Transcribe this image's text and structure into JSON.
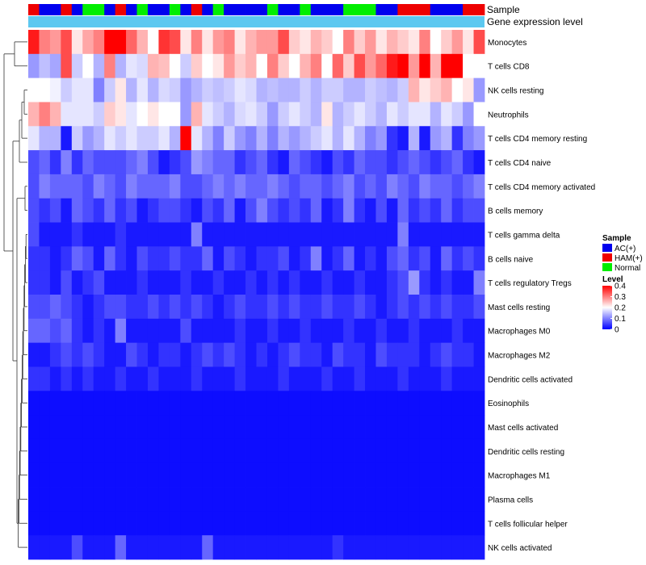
{
  "chart_data": {
    "type": "heatmap",
    "annotation_labels": {
      "sample": "Sample",
      "gene_expression": "Gene expression level"
    },
    "sample_groups": [
      "HAM(+)",
      "AC(+)",
      "AC(+)",
      "HAM(+)",
      "AC(+)",
      "Normal",
      "Normal",
      "AC(+)",
      "HAM(+)",
      "AC(+)",
      "Normal",
      "AC(+)",
      "AC(+)",
      "Normal",
      "AC(+)",
      "HAM(+)",
      "AC(+)",
      "Normal",
      "AC(+)",
      "AC(+)",
      "AC(+)",
      "AC(+)",
      "Normal",
      "AC(+)",
      "AC(+)",
      "Normal",
      "AC(+)",
      "AC(+)",
      "AC(+)",
      "Normal",
      "Normal",
      "Normal",
      "AC(+)",
      "AC(+)",
      "HAM(+)",
      "HAM(+)",
      "HAM(+)",
      "AC(+)",
      "AC(+)",
      "AC(+)",
      "HAM(+)",
      "HAM(+)"
    ],
    "group_colors": {
      "AC(+)": "#0000ee",
      "HAM(+)": "#ee0000",
      "Normal": "#00ee00"
    },
    "gene_expression_color": "#5cc8f0",
    "rows": [
      "Monocytes",
      "T cells CD8",
      "NK cells resting",
      "Neutrophils",
      "T cells CD4 memory resting",
      "T cells CD4 naive",
      "T cells CD4 memory activated",
      "B cells memory",
      "T cells gamma delta",
      "B cells naive",
      "T cells regulatory  Tregs",
      "Mast cells resting",
      "Macrophages M0",
      "Macrophages M2",
      "Dendritic cells activated",
      "Eosinophils",
      "Mast cells activated",
      "Dendritic cells resting",
      "Macrophages M1",
      "Plasma cells",
      "T cells follicular helper",
      "NK cells activated"
    ],
    "values": [
      [
        0.38,
        0.3,
        0.28,
        0.34,
        0.22,
        0.27,
        0.3,
        0.4,
        0.4,
        0.32,
        0.26,
        0.2,
        0.36,
        0.34,
        0.22,
        0.3,
        0.22,
        0.28,
        0.3,
        0.22,
        0.26,
        0.28,
        0.28,
        0.34,
        0.24,
        0.22,
        0.26,
        0.24,
        0.2,
        0.3,
        0.24,
        0.28,
        0.22,
        0.26,
        0.24,
        0.22,
        0.3,
        0.2,
        0.24,
        0.28,
        0.22,
        0.34
      ],
      [
        0.12,
        0.15,
        0.13,
        0.34,
        0.16,
        0.2,
        0.14,
        0.3,
        0.14,
        0.18,
        0.17,
        0.26,
        0.25,
        0.2,
        0.16,
        0.24,
        0.2,
        0.22,
        0.28,
        0.24,
        0.26,
        0.2,
        0.3,
        0.24,
        0.2,
        0.26,
        0.3,
        0.2,
        0.32,
        0.24,
        0.34,
        0.28,
        0.32,
        0.38,
        0.4,
        0.28,
        0.4,
        0.26,
        0.4,
        0.4,
        0.2,
        0.2
      ],
      [
        0.2,
        0.2,
        0.19,
        0.16,
        0.18,
        0.18,
        0.1,
        0.16,
        0.22,
        0.14,
        0.18,
        0.14,
        0.17,
        0.16,
        0.12,
        0.14,
        0.16,
        0.15,
        0.16,
        0.18,
        0.17,
        0.14,
        0.15,
        0.14,
        0.14,
        0.16,
        0.14,
        0.16,
        0.16,
        0.14,
        0.14,
        0.16,
        0.15,
        0.14,
        0.16,
        0.26,
        0.22,
        0.24,
        0.26,
        0.2,
        0.22,
        0.12
      ],
      [
        0.26,
        0.3,
        0.26,
        0.18,
        0.18,
        0.18,
        0.16,
        0.24,
        0.22,
        0.18,
        0.2,
        0.22,
        0.2,
        0.2,
        0.12,
        0.26,
        0.18,
        0.16,
        0.14,
        0.17,
        0.18,
        0.16,
        0.12,
        0.16,
        0.18,
        0.16,
        0.14,
        0.22,
        0.14,
        0.16,
        0.18,
        0.16,
        0.14,
        0.18,
        0.16,
        0.18,
        0.18,
        0.14,
        0.18,
        0.16,
        0.12,
        0.2
      ],
      [
        0.18,
        0.14,
        0.14,
        0.02,
        0.16,
        0.12,
        0.14,
        0.18,
        0.16,
        0.18,
        0.16,
        0.16,
        0.18,
        0.14,
        0.4,
        0.18,
        0.14,
        0.1,
        0.16,
        0.12,
        0.1,
        0.14,
        0.1,
        0.14,
        0.12,
        0.14,
        0.16,
        0.18,
        0.14,
        0.18,
        0.14,
        0.1,
        0.12,
        0.04,
        0.02,
        0.14,
        0.02,
        0.12,
        0.14,
        0.04,
        0.1,
        0.12
      ],
      [
        0.06,
        0.08,
        0.04,
        0.1,
        0.04,
        0.08,
        0.06,
        0.06,
        0.06,
        0.08,
        0.1,
        0.06,
        0.02,
        0.04,
        0.06,
        0.12,
        0.1,
        0.08,
        0.08,
        0.04,
        0.06,
        0.08,
        0.04,
        0.02,
        0.08,
        0.06,
        0.04,
        0.02,
        0.06,
        0.04,
        0.08,
        0.06,
        0.06,
        0.04,
        0.06,
        0.08,
        0.06,
        0.04,
        0.06,
        0.08,
        0.04,
        0.02
      ],
      [
        0.06,
        0.1,
        0.08,
        0.08,
        0.08,
        0.06,
        0.1,
        0.08,
        0.06,
        0.1,
        0.08,
        0.08,
        0.08,
        0.1,
        0.06,
        0.06,
        0.08,
        0.1,
        0.08,
        0.1,
        0.08,
        0.08,
        0.1,
        0.08,
        0.06,
        0.08,
        0.08,
        0.06,
        0.08,
        0.1,
        0.06,
        0.08,
        0.06,
        0.1,
        0.08,
        0.06,
        0.1,
        0.08,
        0.08,
        0.06,
        0.08,
        0.1
      ],
      [
        0.06,
        0.04,
        0.06,
        0.02,
        0.08,
        0.06,
        0.04,
        0.08,
        0.04,
        0.06,
        0.02,
        0.04,
        0.06,
        0.06,
        0.04,
        0.02,
        0.06,
        0.04,
        0.08,
        0.02,
        0.06,
        0.1,
        0.06,
        0.04,
        0.06,
        0.04,
        0.08,
        0.02,
        0.04,
        0.1,
        0.04,
        0.02,
        0.06,
        0.02,
        0.08,
        0.04,
        0.06,
        0.04,
        0.08,
        0.04,
        0.06,
        0.06
      ],
      [
        0.06,
        0.02,
        0.02,
        0.02,
        0.04,
        0.02,
        0.02,
        0.02,
        0.04,
        0.02,
        0.02,
        0.02,
        0.02,
        0.02,
        0.02,
        0.1,
        0.02,
        0.02,
        0.02,
        0.02,
        0.02,
        0.02,
        0.02,
        0.02,
        0.02,
        0.02,
        0.02,
        0.02,
        0.02,
        0.02,
        0.02,
        0.02,
        0.02,
        0.02,
        0.1,
        0.02,
        0.02,
        0.02,
        0.02,
        0.02,
        0.02,
        0.02
      ],
      [
        0.04,
        0.04,
        0.02,
        0.04,
        0.08,
        0.06,
        0.02,
        0.08,
        0.04,
        0.02,
        0.06,
        0.04,
        0.04,
        0.06,
        0.04,
        0.04,
        0.08,
        0.02,
        0.06,
        0.04,
        0.02,
        0.04,
        0.04,
        0.06,
        0.02,
        0.04,
        0.1,
        0.02,
        0.04,
        0.08,
        0.02,
        0.04,
        0.02,
        0.06,
        0.08,
        0.04,
        0.06,
        0.02,
        0.08,
        0.04,
        0.06,
        0.04
      ],
      [
        0.04,
        0.04,
        0.02,
        0.06,
        0.02,
        0.04,
        0.06,
        0.02,
        0.02,
        0.02,
        0.04,
        0.02,
        0.02,
        0.02,
        0.04,
        0.02,
        0.02,
        0.04,
        0.02,
        0.02,
        0.04,
        0.02,
        0.04,
        0.02,
        0.04,
        0.02,
        0.02,
        0.04,
        0.02,
        0.02,
        0.04,
        0.02,
        0.02,
        0.04,
        0.06,
        0.12,
        0.04,
        0.02,
        0.04,
        0.02,
        0.02,
        0.1
      ],
      [
        0.06,
        0.06,
        0.08,
        0.06,
        0.04,
        0.02,
        0.04,
        0.06,
        0.06,
        0.04,
        0.04,
        0.06,
        0.04,
        0.06,
        0.04,
        0.06,
        0.04,
        0.02,
        0.04,
        0.06,
        0.04,
        0.04,
        0.06,
        0.04,
        0.06,
        0.04,
        0.04,
        0.06,
        0.04,
        0.04,
        0.06,
        0.04,
        0.02,
        0.04,
        0.06,
        0.04,
        0.06,
        0.04,
        0.06,
        0.04,
        0.04,
        0.06
      ],
      [
        0.08,
        0.08,
        0.06,
        0.08,
        0.04,
        0.02,
        0.04,
        0.02,
        0.1,
        0.02,
        0.02,
        0.02,
        0.02,
        0.02,
        0.06,
        0.02,
        0.02,
        0.02,
        0.02,
        0.04,
        0.02,
        0.02,
        0.04,
        0.02,
        0.02,
        0.04,
        0.02,
        0.02,
        0.02,
        0.04,
        0.02,
        0.02,
        0.04,
        0.02,
        0.02,
        0.04,
        0.02,
        0.02,
        0.02,
        0.04,
        0.02,
        0.02
      ],
      [
        0.02,
        0.02,
        0.04,
        0.06,
        0.04,
        0.06,
        0.04,
        0.02,
        0.02,
        0.06,
        0.04,
        0.02,
        0.04,
        0.04,
        0.02,
        0.04,
        0.06,
        0.04,
        0.06,
        0.04,
        0.02,
        0.04,
        0.02,
        0.04,
        0.06,
        0.04,
        0.04,
        0.02,
        0.06,
        0.04,
        0.04,
        0.02,
        0.06,
        0.04,
        0.04,
        0.04,
        0.02,
        0.04,
        0.06,
        0.04,
        0.04,
        0.02
      ],
      [
        0.04,
        0.04,
        0.02,
        0.04,
        0.02,
        0.04,
        0.02,
        0.02,
        0.04,
        0.02,
        0.02,
        0.04,
        0.02,
        0.02,
        0.02,
        0.04,
        0.02,
        0.02,
        0.02,
        0.04,
        0.02,
        0.02,
        0.02,
        0.04,
        0.02,
        0.02,
        0.02,
        0.04,
        0.02,
        0.02,
        0.04,
        0.02,
        0.02,
        0.02,
        0.04,
        0.02,
        0.02,
        0.02,
        0.04,
        0.02,
        0.02,
        0.02
      ],
      [
        0.01,
        0.01,
        0.01,
        0.01,
        0.01,
        0.01,
        0.01,
        0.01,
        0.01,
        0.01,
        0.01,
        0.01,
        0.01,
        0.01,
        0.01,
        0.01,
        0.01,
        0.01,
        0.01,
        0.01,
        0.01,
        0.01,
        0.01,
        0.01,
        0.01,
        0.01,
        0.01,
        0.01,
        0.01,
        0.01,
        0.01,
        0.01,
        0.01,
        0.01,
        0.01,
        0.01,
        0.01,
        0.01,
        0.01,
        0.01,
        0.01,
        0.01
      ],
      [
        0.01,
        0.01,
        0.01,
        0.01,
        0.01,
        0.01,
        0.01,
        0.01,
        0.01,
        0.01,
        0.01,
        0.01,
        0.01,
        0.01,
        0.01,
        0.01,
        0.01,
        0.01,
        0.01,
        0.01,
        0.01,
        0.01,
        0.01,
        0.01,
        0.01,
        0.01,
        0.01,
        0.01,
        0.01,
        0.01,
        0.01,
        0.01,
        0.01,
        0.01,
        0.01,
        0.01,
        0.01,
        0.01,
        0.01,
        0.01,
        0.01,
        0.01
      ],
      [
        0.01,
        0.01,
        0.01,
        0.01,
        0.01,
        0.01,
        0.01,
        0.01,
        0.01,
        0.01,
        0.01,
        0.01,
        0.01,
        0.01,
        0.01,
        0.01,
        0.01,
        0.01,
        0.01,
        0.01,
        0.01,
        0.01,
        0.01,
        0.01,
        0.01,
        0.01,
        0.01,
        0.01,
        0.01,
        0.01,
        0.01,
        0.01,
        0.01,
        0.01,
        0.01,
        0.01,
        0.01,
        0.01,
        0.01,
        0.01,
        0.01,
        0.01
      ],
      [
        0.01,
        0.01,
        0.01,
        0.01,
        0.01,
        0.01,
        0.01,
        0.01,
        0.01,
        0.01,
        0.01,
        0.01,
        0.01,
        0.01,
        0.01,
        0.01,
        0.01,
        0.01,
        0.01,
        0.01,
        0.01,
        0.01,
        0.01,
        0.01,
        0.01,
        0.01,
        0.01,
        0.01,
        0.01,
        0.01,
        0.01,
        0.01,
        0.01,
        0.01,
        0.01,
        0.01,
        0.01,
        0.01,
        0.01,
        0.01,
        0.01,
        0.01
      ],
      [
        0.01,
        0.01,
        0.01,
        0.01,
        0.01,
        0.01,
        0.01,
        0.01,
        0.01,
        0.01,
        0.01,
        0.01,
        0.01,
        0.01,
        0.01,
        0.01,
        0.01,
        0.01,
        0.01,
        0.01,
        0.01,
        0.01,
        0.01,
        0.01,
        0.01,
        0.01,
        0.01,
        0.01,
        0.01,
        0.01,
        0.01,
        0.01,
        0.01,
        0.01,
        0.01,
        0.01,
        0.01,
        0.01,
        0.01,
        0.01,
        0.01,
        0.01
      ],
      [
        0.01,
        0.01,
        0.01,
        0.01,
        0.01,
        0.01,
        0.01,
        0.01,
        0.01,
        0.01,
        0.01,
        0.01,
        0.01,
        0.01,
        0.01,
        0.01,
        0.01,
        0.01,
        0.01,
        0.01,
        0.01,
        0.01,
        0.01,
        0.01,
        0.01,
        0.01,
        0.01,
        0.01,
        0.01,
        0.01,
        0.01,
        0.01,
        0.01,
        0.01,
        0.01,
        0.01,
        0.01,
        0.01,
        0.01,
        0.01,
        0.01,
        0.01
      ],
      [
        0.02,
        0.02,
        0.02,
        0.02,
        0.06,
        0.02,
        0.02,
        0.02,
        0.08,
        0.02,
        0.02,
        0.02,
        0.02,
        0.02,
        0.02,
        0.02,
        0.08,
        0.02,
        0.02,
        0.02,
        0.02,
        0.02,
        0.02,
        0.02,
        0.02,
        0.02,
        0.02,
        0.02,
        0.04,
        0.02,
        0.02,
        0.02,
        0.02,
        0.02,
        0.02,
        0.02,
        0.02,
        0.02,
        0.02,
        0.02,
        0.02,
        0.02
      ]
    ],
    "legend": {
      "sample_title": "Sample",
      "sample_entries": [
        "AC(+)",
        "HAM(+)",
        "Normal"
      ],
      "level_title": "Level",
      "level_ticks": [
        "0.4",
        "0.3",
        "0.2",
        "0.1",
        "0"
      ],
      "level_tick_values": [
        0.4,
        0.3,
        0.2,
        0.1,
        0
      ],
      "level_range": [
        0,
        0.4
      ]
    },
    "color_scale": {
      "low": "#0000ff",
      "mid": "#ffffff",
      "high": "#ff0000",
      "mid_value": 0.2
    }
  }
}
